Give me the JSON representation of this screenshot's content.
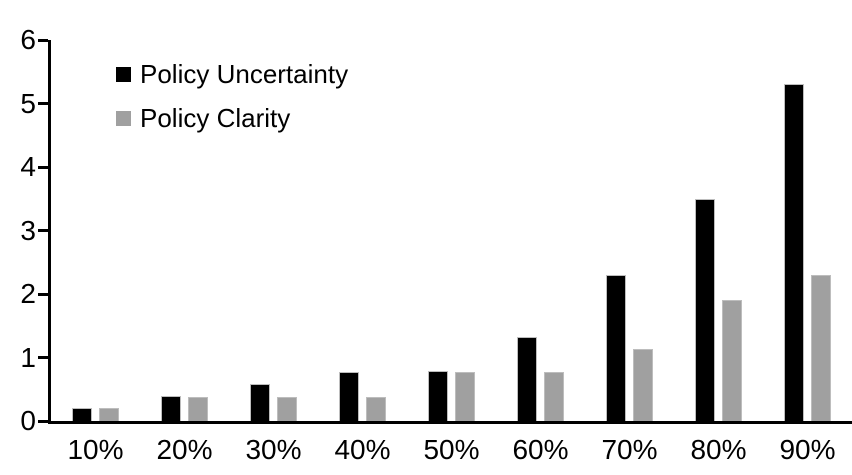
{
  "chart_data": {
    "type": "bar",
    "title": "",
    "xlabel": "",
    "ylabel": "",
    "categories": [
      "10%",
      "20%",
      "30%",
      "40%",
      "50%",
      "60%",
      "70%",
      "80%",
      "90%"
    ],
    "series": [
      {
        "name": "Policy Uncertainty",
        "color": "#000000",
        "values": [
          0.2,
          0.4,
          0.58,
          0.77,
          0.79,
          1.33,
          2.3,
          3.5,
          5.3
        ]
      },
      {
        "name": "Policy Clarity",
        "color": "#a0a0a0",
        "values": [
          0.2,
          0.38,
          0.38,
          0.38,
          0.77,
          0.77,
          1.13,
          1.9,
          2.3
        ]
      }
    ],
    "ylim": [
      0,
      6
    ],
    "yticks": [
      0,
      1,
      2,
      3,
      4,
      5,
      6
    ],
    "grid": false,
    "legend_position": "upper-left",
    "axis_color": "#000000",
    "background_color": "#ffffff"
  }
}
